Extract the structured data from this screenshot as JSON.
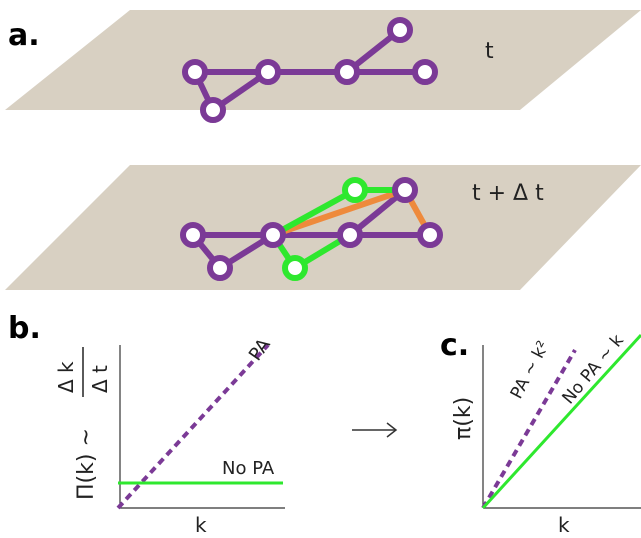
{
  "panel_a": {
    "label": "a.",
    "planes": [
      {
        "time": "t"
      },
      {
        "time": "t + Δ t"
      }
    ]
  },
  "panel_b": {
    "label": "b.",
    "y_label": "Π(k) ~",
    "y_label_numerator": "Δ k",
    "y_label_denominator": "Δ t",
    "x_label": "k",
    "lines": [
      "PA",
      "No PA"
    ]
  },
  "panel_c": {
    "label": "c.",
    "y_label": "π(k)",
    "x_label": "k",
    "lines": [
      "PA ~ k²",
      "No PA ~ k"
    ]
  }
}
